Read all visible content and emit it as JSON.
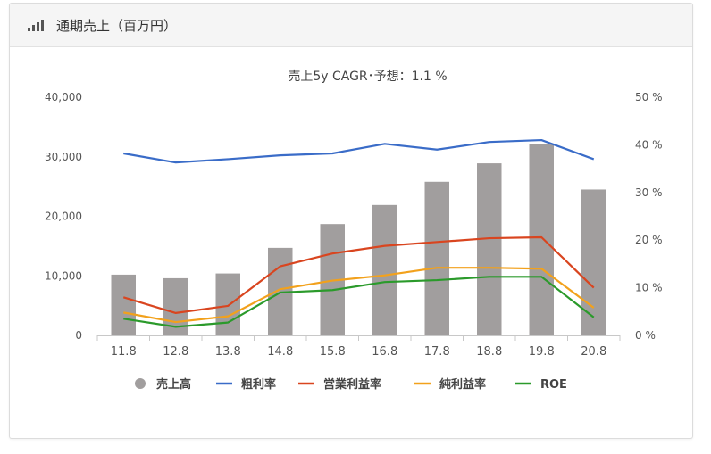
{
  "panel": {
    "title": "通期売上（百万円）",
    "icon": "bar-chart-icon"
  },
  "chart_data": {
    "type": "bar+line",
    "title": "売上5y CAGR･予想：1.1 %",
    "categories": [
      "11.8",
      "12.8",
      "13.8",
      "14.8",
      "15.8",
      "16.8",
      "17.8",
      "18.8",
      "19.8",
      "20.8"
    ],
    "left_axis": {
      "ylim": [
        0,
        40000
      ],
      "ticks": [
        "0",
        "10,000",
        "20,000",
        "30,000",
        "40,000"
      ]
    },
    "right_axis": {
      "ylim": [
        0,
        50
      ],
      "ticks": [
        "0 %",
        "10 %",
        "20 %",
        "30 %",
        "40 %",
        "50 %"
      ]
    },
    "bars": {
      "name": "売上高",
      "color": "#a19e9e",
      "values": [
        10200,
        9600,
        10400,
        14700,
        18700,
        21900,
        25800,
        28900,
        32200,
        24500
      ]
    },
    "series": [
      {
        "name": "粗利率",
        "color": "#3a6cc8",
        "values": [
          38.2,
          36.3,
          37.0,
          37.8,
          38.2,
          40.2,
          39.0,
          40.6,
          41.0,
          37.0
        ]
      },
      {
        "name": "営業利益率",
        "color": "#d9451f",
        "values": [
          8.0,
          4.7,
          6.2,
          14.5,
          17.2,
          18.8,
          19.6,
          20.4,
          20.6,
          10.0
        ]
      },
      {
        "name": "純利益率",
        "color": "#f2a11c",
        "values": [
          4.8,
          2.8,
          4.0,
          9.7,
          11.5,
          12.6,
          14.2,
          14.2,
          14.0,
          5.8
        ]
      },
      {
        "name": "ROE",
        "color": "#2b9a2b",
        "values": [
          3.5,
          1.8,
          2.7,
          9.0,
          9.5,
          11.2,
          11.6,
          12.3,
          12.3,
          3.8
        ]
      }
    ],
    "legend_position": "bottom",
    "grid": false
  }
}
